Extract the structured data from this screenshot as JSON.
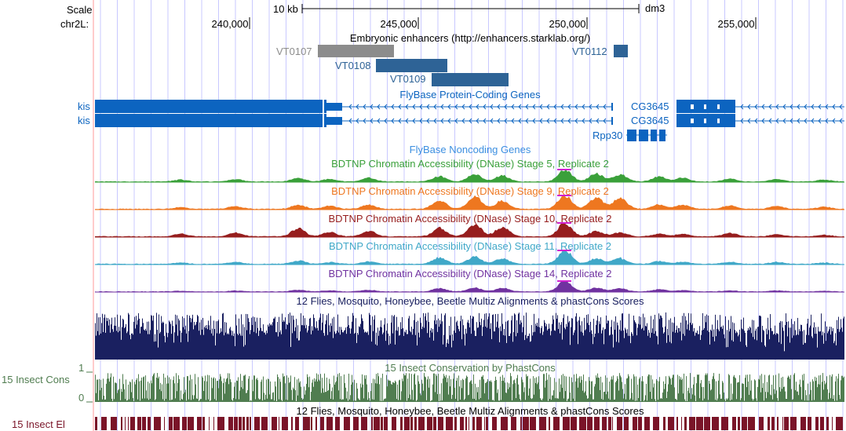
{
  "colors": {
    "gridline": "#c8c8ff",
    "divider": "#ff9999",
    "enhancer_gray": "#8c8c8c",
    "enhancer_blue": "#2e6396",
    "gene_blue": "#0c64c0",
    "stage5": "#3aa03a",
    "stage9": "#ee7720",
    "stage10": "#961e1e",
    "stage11": "#40a8c8",
    "stage14": "#7032a0",
    "multiz": "#1a2060",
    "phastcons": "#507d50",
    "elements": "#7a1428",
    "peak_top": "#d020d0"
  },
  "header": {
    "scale_label": "Scale",
    "chrom_label": "chr2L:",
    "scale_bar_text": "10 kb",
    "assembly": "dm3",
    "ticks": [
      "240,000",
      "245,000",
      "250,000",
      "255,000"
    ]
  },
  "tracks": {
    "enhancers_title": "Embryonic enhancers (http://enhancers.starklab.org/)",
    "enhancers": [
      {
        "name": "VT0107",
        "color": "gray"
      },
      {
        "name": "VT0108",
        "color": "blue"
      },
      {
        "name": "VT0109",
        "color": "blue"
      },
      {
        "name": "VT0112",
        "color": "blue"
      }
    ],
    "genes_title": "FlyBase Protein-Coding Genes",
    "genes": {
      "kis_1": "kis",
      "kis_2": "kis",
      "cg1": "CG3645",
      "cg2": "CG3645",
      "rpp": "Rpp30"
    },
    "noncoding_title": "FlyBase Noncoding Genes",
    "dnase": [
      {
        "title": "BDTNP Chromatin Accessibility (DNase) Stage 5, Replicate 2",
        "color": "#3aa03a"
      },
      {
        "title": "BDTNP Chromatin Accessibility (DNase) Stage 9, Replicate 2",
        "color": "#ee7720"
      },
      {
        "title": "BDTNP Chromatin Accessibility (DNase) Stage 10, Replicate 2",
        "color": "#961e1e"
      },
      {
        "title": "BDTNP Chromatin Accessibility (DNase) Stage 11, Replicate 2",
        "color": "#40a8c8"
      },
      {
        "title": "BDTNP Chromatin Accessibility (DNase) Stage 14, Replicate 2",
        "color": "#7032a0"
      }
    ],
    "multiz_title": "12 Flies, Mosquito, Honeybee, Beetle Multiz Alignments & phastCons Scores",
    "cons_title": "15 Insect Conservation by PhastCons",
    "cons_left": "15 Insect Cons",
    "cons_y_max": "1",
    "cons_y_min": "0",
    "multiz_title_2": "12 Flies, Mosquito, Honeybee, Beetle Multiz Alignments & phastCons Scores",
    "el_left": "15 Insect El"
  }
}
